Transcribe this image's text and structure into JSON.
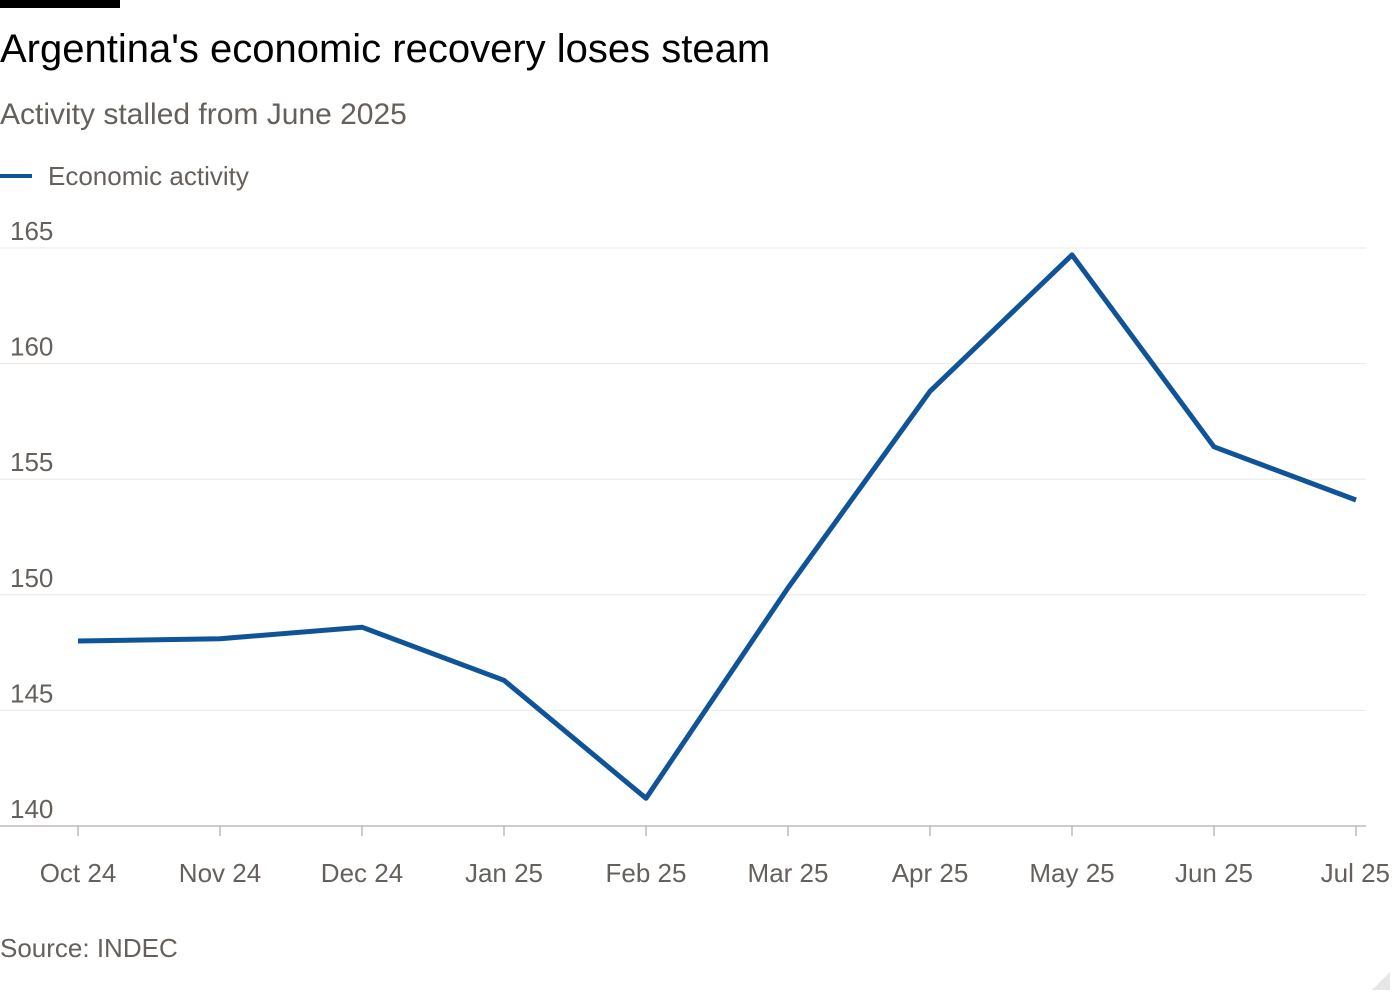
{
  "header": {
    "title": "Argentina's economic recovery loses steam",
    "subtitle": "Activity stalled from June 2025"
  },
  "legend": {
    "label": "Economic activity"
  },
  "footer": {
    "source": "Source: INDEC"
  },
  "colors": {
    "series": "#0f5499",
    "grid": "#ebe8e6",
    "axis": "#bfbbb8",
    "muted_text": "#66605c"
  },
  "chart_data": {
    "type": "line",
    "title": "Argentina's economic recovery loses steam",
    "subtitle": "Activity stalled from June 2025",
    "xlabel": "",
    "ylabel": "",
    "categories": [
      "Oct 24",
      "Nov 24",
      "Dec 24",
      "Jan 25",
      "Feb 25",
      "Mar 25",
      "Apr 25",
      "May 25",
      "Jun 25",
      "Jul 25"
    ],
    "series": [
      {
        "name": "Economic activity",
        "values": [
          148.0,
          148.1,
          148.6,
          146.3,
          141.2,
          150.3,
          158.8,
          164.7,
          156.4,
          154.1
        ]
      }
    ],
    "ylim": [
      140,
      165
    ],
    "yticks": [
      140,
      145,
      150,
      155,
      160,
      165
    ],
    "grid": true,
    "legend_position": "top-left"
  }
}
